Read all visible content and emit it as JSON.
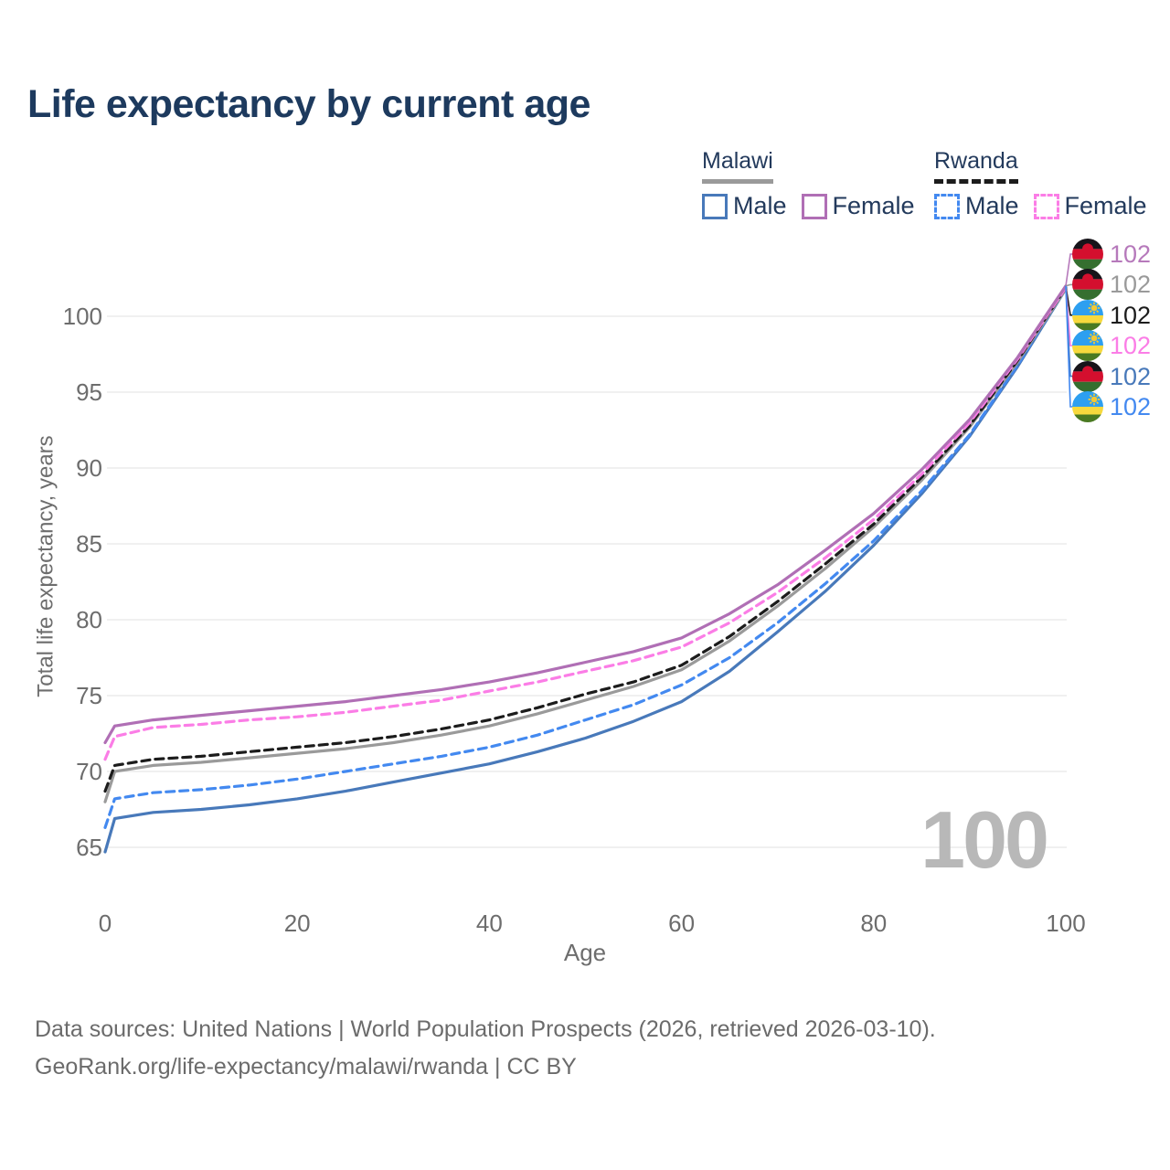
{
  "title": "Life expectancy by current age",
  "legend": {
    "groups": [
      {
        "name": "Malawi",
        "underline_style": "solid",
        "underline_color": "#9a9a9a",
        "items": [
          {
            "label": "Male",
            "color": "#4879ba",
            "box_style": "solid"
          },
          {
            "label": "Female",
            "color": "#b06fb5",
            "box_style": "solid"
          }
        ]
      },
      {
        "name": "Rwanda",
        "underline_style": "dashed",
        "underline_color": "#1c1c1c",
        "items": [
          {
            "label": "Male",
            "color": "#4389f0",
            "box_style": "dashed"
          },
          {
            "label": "Female",
            "color": "#fb7de6",
            "box_style": "dashed"
          }
        ]
      }
    ]
  },
  "chart_data": {
    "type": "line",
    "title": "Life expectancy by current age",
    "xlabel": "Age",
    "ylabel": "Total life expectancy, years",
    "xlim": [
      0,
      100
    ],
    "ylim": [
      63,
      104
    ],
    "xticks": [
      0,
      20,
      40,
      60,
      80,
      100
    ],
    "yticks": [
      65,
      70,
      75,
      80,
      85,
      90,
      95,
      100
    ],
    "grid": "horizontal",
    "gridline_color": "#e6e6e6",
    "watermark": "100",
    "x": [
      0,
      1,
      5,
      10,
      15,
      20,
      25,
      30,
      35,
      40,
      45,
      50,
      55,
      60,
      65,
      70,
      75,
      80,
      85,
      90,
      95,
      100
    ],
    "series": [
      {
        "name": "Malawi — Male",
        "country": "Malawi",
        "sex": "Male",
        "style": "solid",
        "color": "#4879ba",
        "values": [
          64.7,
          66.9,
          67.3,
          67.5,
          67.8,
          68.2,
          68.7,
          69.3,
          69.9,
          70.5,
          71.3,
          72.2,
          73.3,
          74.6,
          76.6,
          79.2,
          81.9,
          84.9,
          88.3,
          92.1,
          96.7,
          101.8
        ]
      },
      {
        "name": "Rwanda — Male",
        "country": "Rwanda",
        "sex": "Male",
        "style": "dashed",
        "color": "#4389f0",
        "values": [
          66.3,
          68.2,
          68.6,
          68.8,
          69.1,
          69.5,
          70.0,
          70.5,
          71.0,
          71.6,
          72.4,
          73.4,
          74.4,
          75.7,
          77.5,
          79.8,
          82.4,
          85.2,
          88.5,
          92.2,
          96.8,
          101.9
        ]
      },
      {
        "name": "Malawi",
        "country": "Malawi",
        "sex": "Both",
        "style": "solid",
        "color": "#9a9a9a",
        "values": [
          68.0,
          70.0,
          70.4,
          70.6,
          70.9,
          71.2,
          71.5,
          71.9,
          72.4,
          73.0,
          73.8,
          74.7,
          75.6,
          76.7,
          78.6,
          80.9,
          83.4,
          86.1,
          89.2,
          92.7,
          97.0,
          101.8
        ]
      },
      {
        "name": "Rwanda",
        "country": "Rwanda",
        "sex": "Both",
        "style": "dashed",
        "color": "#1c1c1c",
        "values": [
          68.7,
          70.4,
          70.8,
          71.0,
          71.3,
          71.6,
          71.9,
          72.3,
          72.8,
          73.4,
          74.2,
          75.1,
          75.9,
          77.0,
          78.9,
          81.2,
          83.7,
          86.3,
          89.4,
          92.8,
          97.1,
          101.9
        ]
      },
      {
        "name": "Rwanda — Female",
        "country": "Rwanda",
        "sex": "Female",
        "style": "dashed",
        "color": "#fb7de6",
        "values": [
          70.8,
          72.3,
          72.9,
          73.1,
          73.4,
          73.6,
          73.9,
          74.3,
          74.7,
          75.3,
          75.9,
          76.6,
          77.3,
          78.2,
          79.8,
          81.8,
          84.1,
          86.6,
          89.6,
          93.0,
          97.2,
          101.9
        ]
      },
      {
        "name": "Malawi — Female",
        "country": "Malawi",
        "sex": "Female",
        "style": "solid",
        "color": "#b06fb5",
        "values": [
          71.9,
          73.0,
          73.4,
          73.7,
          74.0,
          74.3,
          74.6,
          75.0,
          75.4,
          75.9,
          76.5,
          77.2,
          77.9,
          78.8,
          80.4,
          82.3,
          84.6,
          87.0,
          89.9,
          93.2,
          97.3,
          102.0
        ]
      }
    ],
    "end_labels": [
      {
        "flag": "malawi",
        "value": "102",
        "color": "#b679bb"
      },
      {
        "flag": "malawi",
        "value": "102",
        "color": "#9a9a9a"
      },
      {
        "flag": "rwanda",
        "value": "102",
        "color": "#1c1c1c"
      },
      {
        "flag": "rwanda",
        "value": "102",
        "color": "#fb7de6"
      },
      {
        "flag": "malawi",
        "value": "102",
        "color": "#4879ba"
      },
      {
        "flag": "rwanda",
        "value": "102",
        "color": "#4389f0"
      }
    ],
    "legend_position": "top-right"
  },
  "footer": {
    "line1": "Data sources: United Nations | World Population Prospects (2026, retrieved 2026-03-10).",
    "line2": "GeoRank.org/life-expectancy/malawi/rwanda | CC BY"
  }
}
